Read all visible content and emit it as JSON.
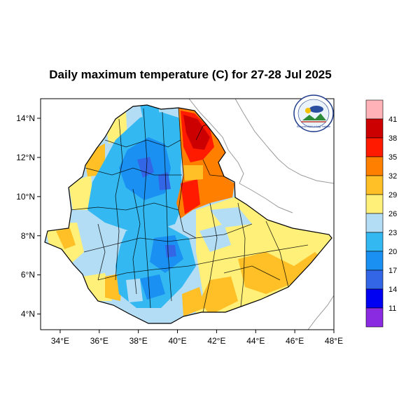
{
  "title": "Daily maximum temperature (C) for 27-28 Jul 2025",
  "x_axis": {
    "ticks": [
      {
        "value": 34,
        "label": "34°E"
      },
      {
        "value": 36,
        "label": "36°E"
      },
      {
        "value": 38,
        "label": "38°E"
      },
      {
        "value": 40,
        "label": "40°E"
      },
      {
        "value": 42,
        "label": "42°E"
      },
      {
        "value": 44,
        "label": "44°E"
      },
      {
        "value": 46,
        "label": "46°E"
      },
      {
        "value": 48,
        "label": "48°E"
      }
    ],
    "range": [
      33,
      48
    ]
  },
  "y_axis": {
    "ticks": [
      {
        "value": 4,
        "label": "4°N"
      },
      {
        "value": 6,
        "label": "6°N"
      },
      {
        "value": 8,
        "label": "8°N"
      },
      {
        "value": 10,
        "label": "10°N"
      },
      {
        "value": 12,
        "label": "12°N"
      },
      {
        "value": 14,
        "label": "14°N"
      }
    ],
    "range": [
      3.2,
      15
    ]
  },
  "colorbar": {
    "labels": [
      "41",
      "38",
      "35",
      "32",
      "29",
      "26",
      "23",
      "20",
      "17",
      "14",
      "11"
    ],
    "colors": [
      "#ffb3b8",
      "#cc0000",
      "#ff1a00",
      "#ff7f00",
      "#ffbf26",
      "#fff07a",
      "#b3dcf5",
      "#33b8f2",
      "#1a91f2",
      "#3366e6",
      "#0000f2",
      "#8a2be2"
    ]
  },
  "logo": {
    "icon": "ethiopian-meteorology-institute-logo",
    "text": "Ethiopian Meteorology Institute"
  }
}
